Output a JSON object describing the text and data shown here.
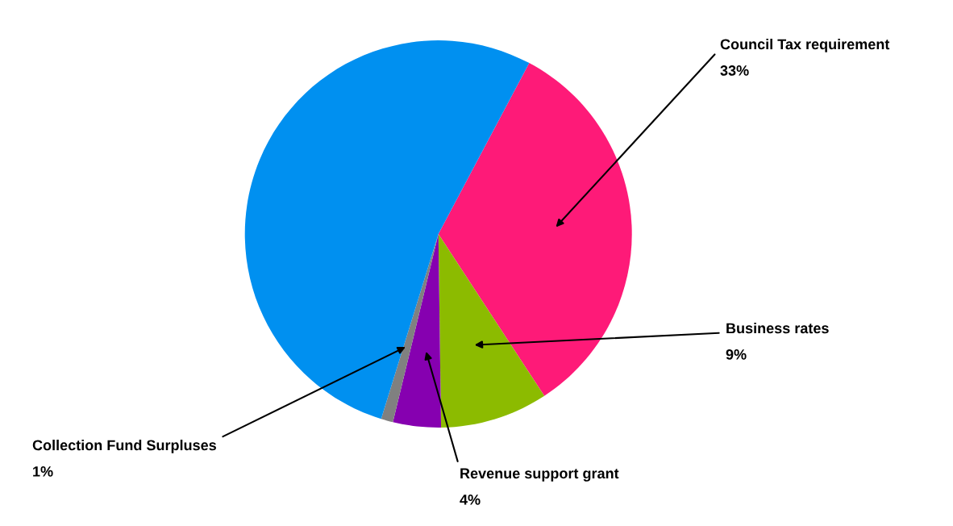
{
  "chart_data": {
    "type": "pie",
    "categories": [
      "Council Tax requirement",
      "Business rates",
      "Revenue support grant",
      "Collection Fund Surpluses",
      null
    ],
    "values": [
      33,
      9,
      4,
      1,
      53
    ],
    "value_labels": [
      "33%",
      "9%",
      "4%",
      "1%",
      null
    ],
    "colors": [
      "#fe1a78",
      "#8cbb00",
      "#8600b0",
      "#808080",
      "#0090f0"
    ]
  }
}
